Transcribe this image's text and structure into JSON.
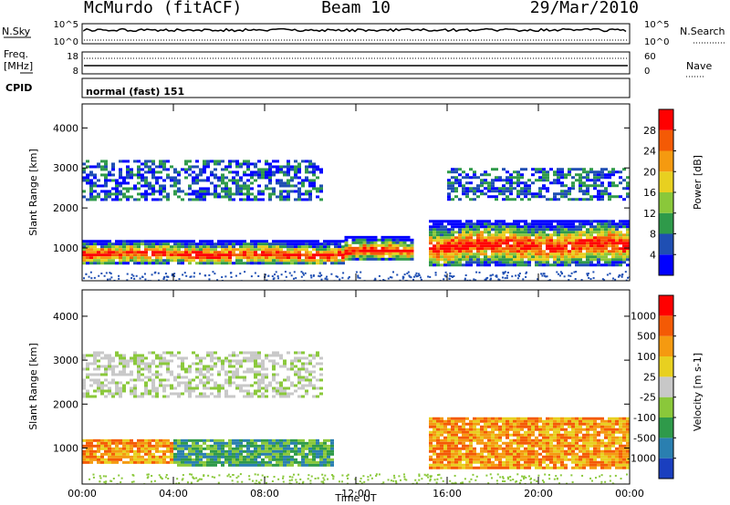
{
  "header": {
    "station": "McMurdo (fitACF)",
    "beam": "Beam 10",
    "date": "29/Mar/2010"
  },
  "strip1": {
    "left_label": "N.Sky",
    "left_ticks": [
      "10^5",
      "10^0"
    ],
    "right_ticks": [
      "10^5",
      "10^0"
    ],
    "right_label": "N.Search"
  },
  "strip2": {
    "left_label_1": "Freq.",
    "left_label_2": "[MHz]",
    "left_ticks": [
      "18",
      "8"
    ],
    "right_ticks": [
      "60",
      "0"
    ],
    "right_label": "Nave"
  },
  "cpid": {
    "label": "CPID",
    "value": "normal (fast) 151"
  },
  "chart_data": [
    {
      "type": "heatmap",
      "ylabel": "Slant Range [km]",
      "xlabel": "Time UT",
      "y_ticks": [
        "1000",
        "2000",
        "3000",
        "4000"
      ],
      "x_ticks": [
        "00:00",
        "04:00",
        "08:00",
        "12:00",
        "16:00",
        "20:00",
        "00:00"
      ],
      "x_range_hours": [
        0,
        24
      ],
      "y_range_km": [
        180,
        4600
      ],
      "colorbar": {
        "label": "Power [dB]",
        "tick_labels": [
          "4",
          "8",
          "12",
          "16",
          "20",
          "24",
          "28"
        ],
        "colors": [
          "#0000ff",
          "#1f4fb3",
          "#2f9a4a",
          "#8ac83a",
          "#e8d020",
          "#f59a10",
          "#f45a05",
          "#ff0000"
        ]
      },
      "echo_regions": [
        {
          "t_start": 0.0,
          "t_end": 11.5,
          "range_km": [
            600,
            1200
          ],
          "intensity": "strong"
        },
        {
          "t_start": 11.5,
          "t_end": 14.5,
          "range_km": [
            700,
            1300
          ],
          "intensity": "strong"
        },
        {
          "t_start": 15.2,
          "t_end": 24.0,
          "range_km": [
            550,
            1700
          ],
          "intensity": "strong"
        },
        {
          "t_start": 0.0,
          "t_end": 10.5,
          "range_km": [
            2200,
            3200
          ],
          "intensity": "weak"
        },
        {
          "t_start": 16.0,
          "t_end": 24.0,
          "range_km": [
            2200,
            3000
          ],
          "intensity": "weak"
        }
      ]
    },
    {
      "type": "heatmap",
      "ylabel": "Slant Range [km]",
      "xlabel": "Time UT",
      "y_ticks": [
        "1000",
        "2000",
        "3000",
        "4000"
      ],
      "x_ticks": [
        "00:00",
        "04:00",
        "08:00",
        "12:00",
        "16:00",
        "20:00",
        "00:00"
      ],
      "x_range_hours": [
        0,
        24
      ],
      "y_range_km": [
        180,
        4600
      ],
      "colorbar": {
        "label": "Velocity [m s-1]",
        "tick_labels": [
          "1000",
          "500",
          "100",
          "25",
          "-25",
          "-100",
          "-500",
          "-1000"
        ],
        "colors": [
          "#1a3fbf",
          "#2a7fb0",
          "#2f9a4a",
          "#8ac83a",
          "#c8c8c8",
          "#e8d020",
          "#f59a10",
          "#f45a05",
          "#ff0000"
        ]
      },
      "echo_regions": [
        {
          "t_start": 0.0,
          "t_end": 4.0,
          "range_km": [
            650,
            1200
          ],
          "velocity": "orange"
        },
        {
          "t_start": 4.0,
          "t_end": 11.0,
          "range_km": [
            600,
            1200
          ],
          "velocity": "green"
        },
        {
          "t_start": 15.2,
          "t_end": 24.0,
          "range_km": [
            550,
            1700
          ],
          "velocity": "orange"
        },
        {
          "t_start": 0.0,
          "t_end": 10.5,
          "range_km": [
            2200,
            3200
          ],
          "velocity": "grey"
        }
      ]
    }
  ]
}
